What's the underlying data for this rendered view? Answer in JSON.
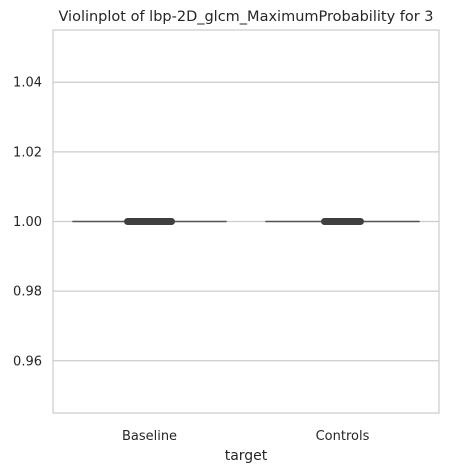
{
  "chart_data": {
    "type": "violin",
    "title": "Violinplot of lbp-2D_glcm_MaximumProbability for 3",
    "xlabel": "target",
    "ylabel": "",
    "categories": [
      "Baseline",
      "Controls"
    ],
    "ylim": [
      0.945,
      1.055
    ],
    "yticks": [
      0.96,
      0.98,
      1.0,
      1.02,
      1.04
    ],
    "ytick_labels": [
      "0.96",
      "0.98",
      "1.00",
      "1.02",
      "1.04"
    ],
    "series": [
      {
        "category": "Baseline",
        "values": [
          1.0
        ],
        "median": 1.0
      },
      {
        "category": "Controls",
        "values": [
          1.0
        ],
        "median": 1.0
      }
    ],
    "grid": "horizontal",
    "colors": {
      "grid": "#cccccc",
      "frame": "#cccccc",
      "violin_line": "#555555",
      "box": "#3f3f3f"
    }
  }
}
